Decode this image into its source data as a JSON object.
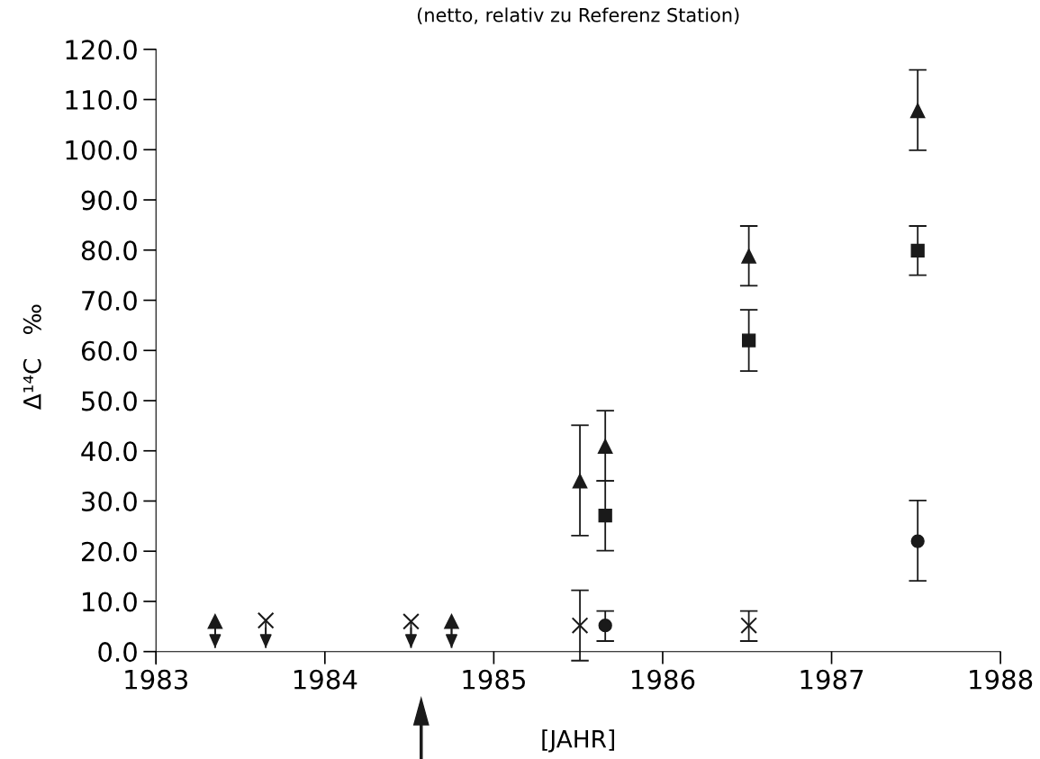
{
  "chart_data": {
    "type": "scatter",
    "title": "(netto, relativ zu Referenz Station)",
    "xlabel": "[JAHR]",
    "ylabel": "Δ¹⁴C   ‰",
    "xlim": [
      1983,
      1988
    ],
    "xticks": [
      1983,
      1984,
      1985,
      1986,
      1987,
      1988
    ],
    "ylim": [
      -2.5,
      120
    ],
    "yticks": [
      {
        "value": 0,
        "label": "0.0"
      },
      {
        "value": 10,
        "label": "10.0"
      },
      {
        "value": 20,
        "label": "20.0"
      },
      {
        "value": 30,
        "label": "30.0"
      },
      {
        "value": 40,
        "label": "40.0"
      },
      {
        "value": 50,
        "label": "50.0"
      },
      {
        "value": 60,
        "label": "60.0"
      },
      {
        "value": 70,
        "label": "70.0"
      },
      {
        "value": 80,
        "label": "80.0"
      },
      {
        "value": 90,
        "label": "90.0"
      },
      {
        "value": 100,
        "label": "100.0"
      },
      {
        "value": 110,
        "label": "110.0"
      },
      {
        "value": 120,
        "label": "120.0"
      }
    ],
    "grid": false,
    "legend": false,
    "series": [
      {
        "color": "#1a1a1a",
        "marker": "triangle",
        "x": [
          1985.51,
          1985.66,
          1986.51,
          1987.51
        ],
        "values": [
          34.0,
          40.9,
          78.8,
          107.8
        ],
        "errors": [
          [
            23.1,
            45.1
          ],
          [
            34.0,
            48.0
          ],
          [
            72.9,
            84.8
          ],
          [
            99.9,
            115.9
          ]
        ]
      },
      {
        "color": "#1a1a1a",
        "marker": "square",
        "x": [
          1985.66,
          1986.51,
          1987.51
        ],
        "values": [
          27.1,
          62.0,
          79.9
        ],
        "errors": [
          [
            20.1,
            34.0
          ],
          [
            55.9,
            68.1
          ],
          [
            75.0,
            84.8
          ]
        ]
      },
      {
        "color": "#1a1a1a",
        "marker": "circle",
        "x": [
          1985.66,
          1987.51
        ],
        "values": [
          5.2,
          22.0
        ],
        "errors": [
          [
            2.1,
            8.1
          ],
          [
            14.1,
            30.1
          ]
        ]
      },
      {
        "color": "#1a1a1a",
        "marker": "cross",
        "x": [
          1985.51,
          1986.51
        ],
        "values": [
          5.2,
          5.2
        ],
        "errors": [
          [
            -1.8,
            12.2
          ],
          [
            2.1,
            8.1
          ]
        ]
      },
      {
        "color": "#1a1a1a",
        "marker": "triangle",
        "x": [
          1983.35,
          1984.75
        ],
        "values": [
          6.0,
          6.0
        ],
        "errors": [
          [
            0.7,
            6.0
          ],
          [
            0.7,
            6.0
          ]
        ]
      },
      {
        "color": "#1a1a1a",
        "marker": "cross",
        "x": [
          1983.65,
          1984.51
        ],
        "values": [
          6.2,
          6.0
        ],
        "errors": [
          [
            0.7,
            6.2
          ],
          [
            0.7,
            6.0
          ]
        ]
      }
    ]
  }
}
